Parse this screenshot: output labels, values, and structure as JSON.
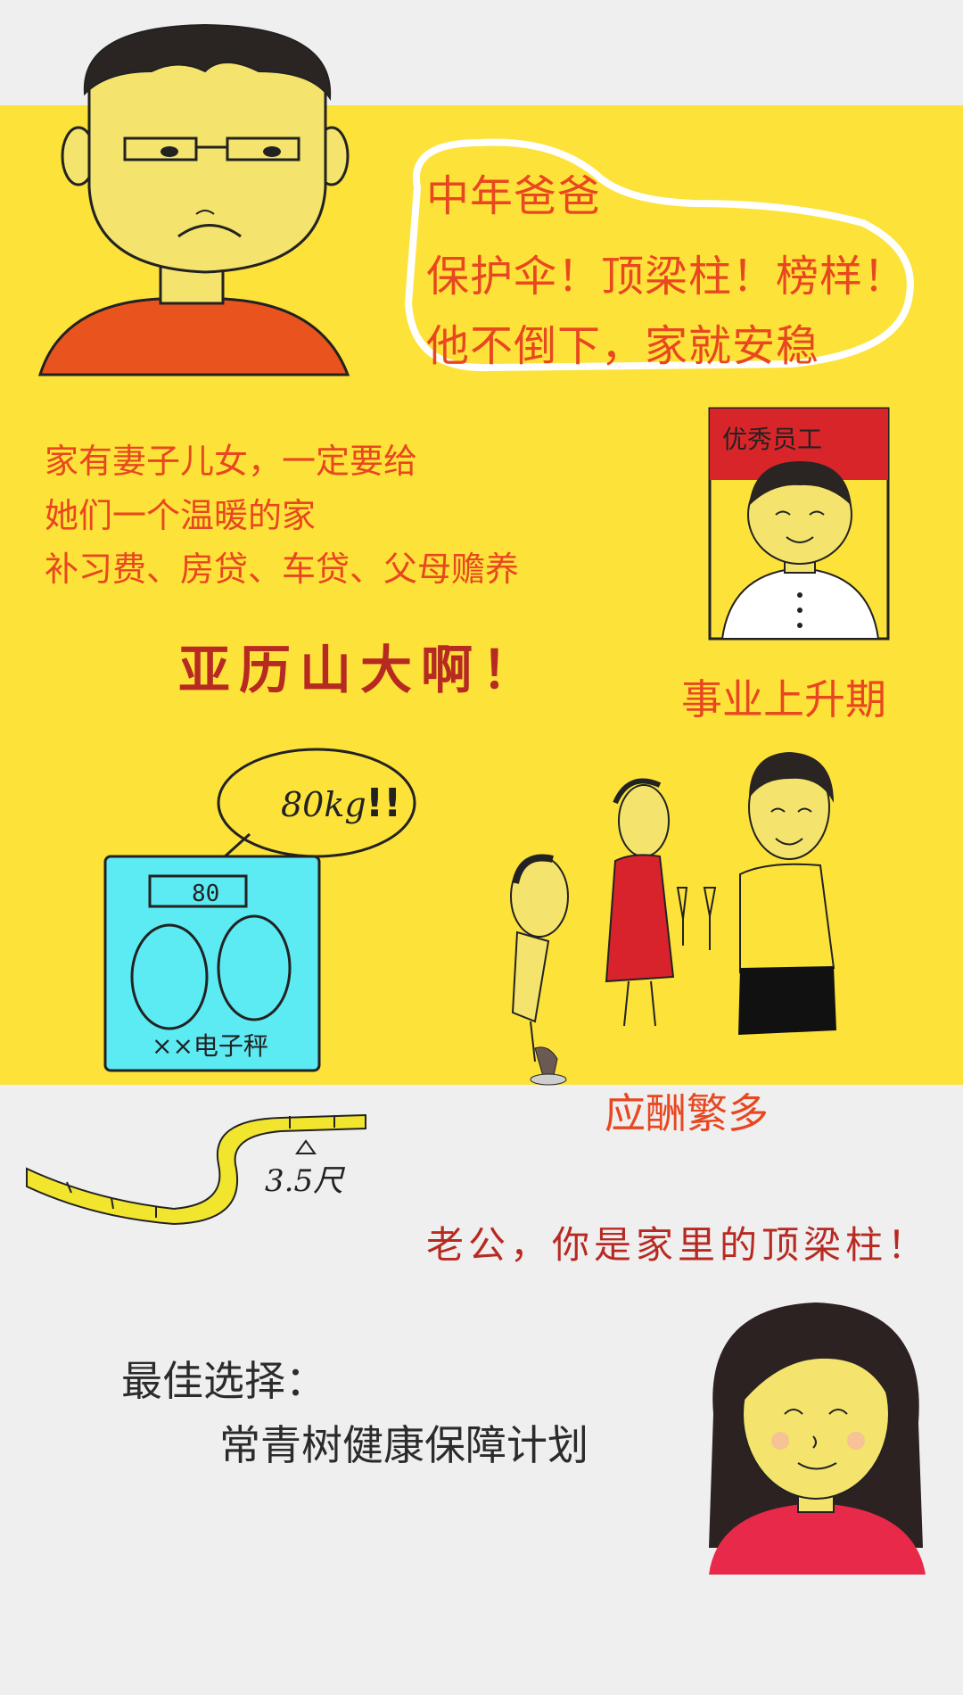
{
  "header": {
    "role_title": "中年爸爸",
    "slogan": "保护伞！顶梁柱！榜样！",
    "stability": "他不倒下，家就安稳"
  },
  "family": {
    "line1": "家有妻子儿女，一定要给",
    "line2": "她们一个温暖的家",
    "line3": "补习费、房贷、车贷、父母赡养"
  },
  "pressure": "亚历山大啊！",
  "career": {
    "label": "事业上升期",
    "badge": "优秀员工"
  },
  "scale": {
    "reading": "80kg",
    "brand": "××电子秤",
    "display": "80"
  },
  "waist": {
    "label": "3.5尺"
  },
  "social": {
    "label": "应酬繁多"
  },
  "wife": {
    "quote": "老公，你是家里的顶梁柱！"
  },
  "recommendation": {
    "title": "最佳选择：",
    "plan": "常青树健康保障计划"
  },
  "colors": {
    "yellow": "#fde23a",
    "orange": "#e8471f",
    "red": "#b72a22",
    "background": "#efefef"
  }
}
